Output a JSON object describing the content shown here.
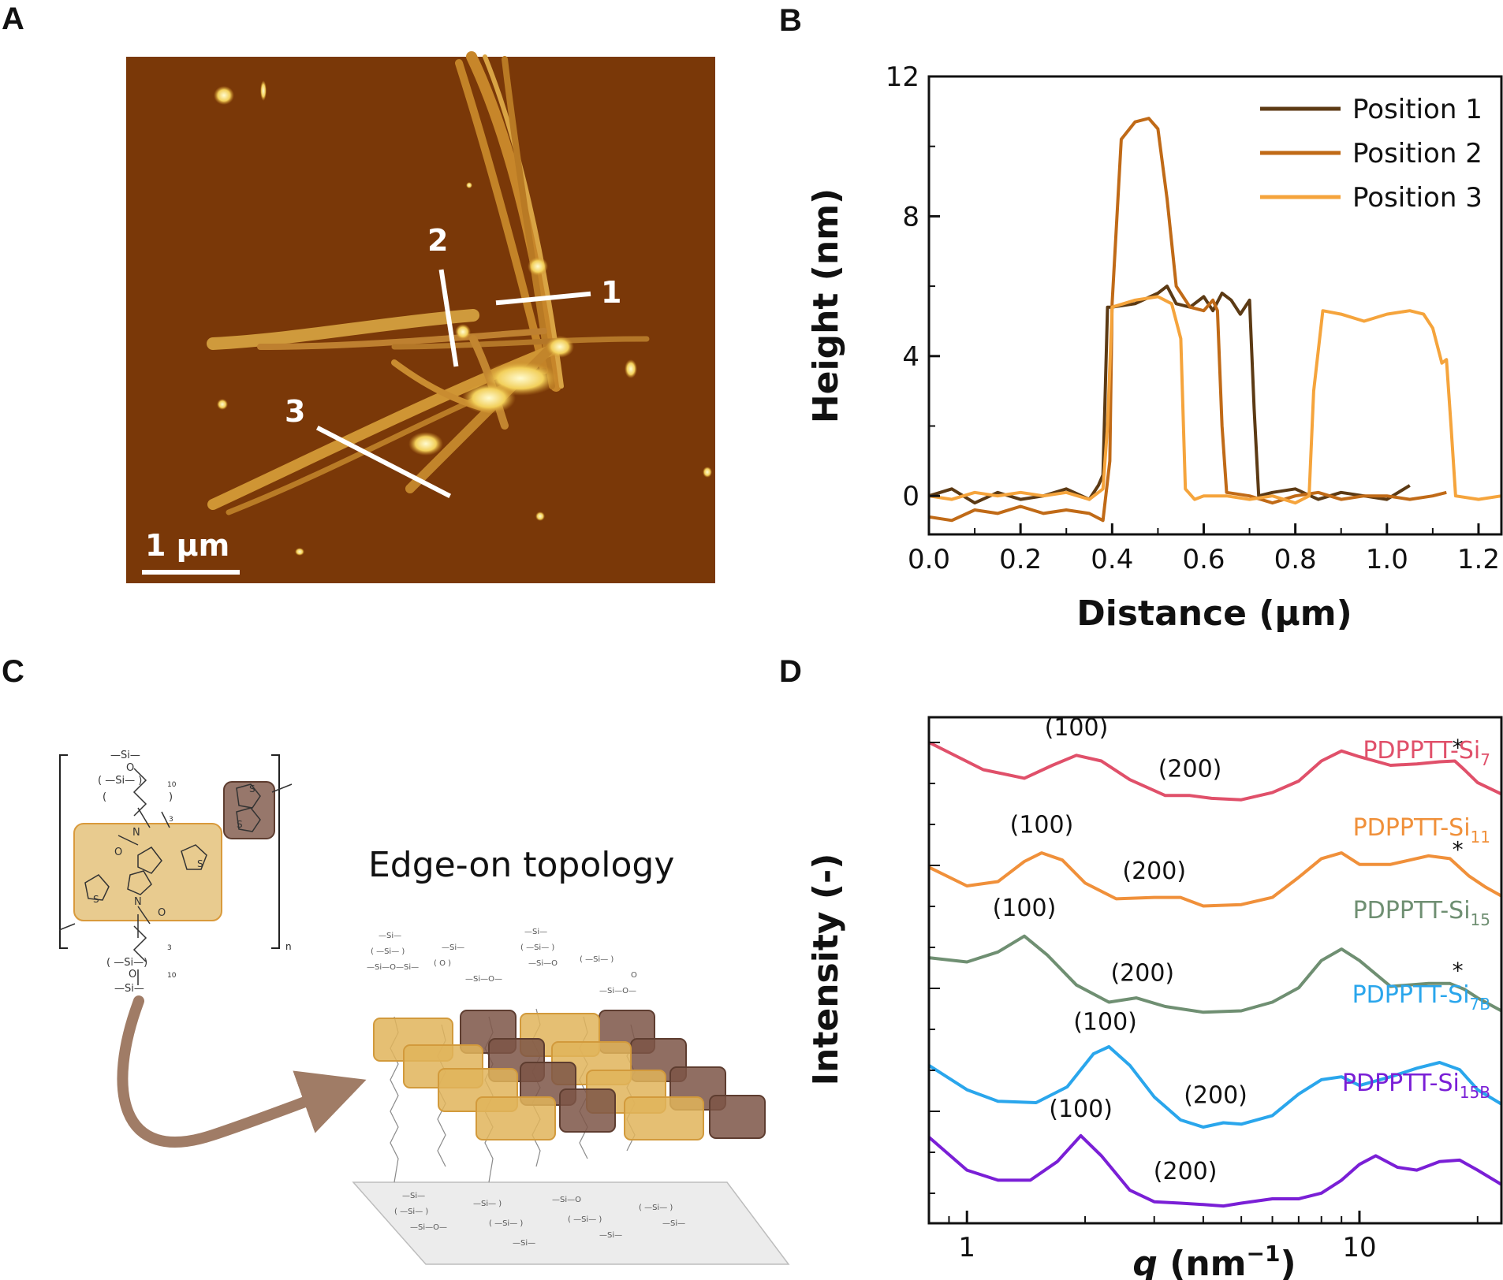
{
  "panels": {
    "A": "A",
    "B": "B",
    "C": "C",
    "D": "D"
  },
  "afm": {
    "scale_bar": "1 μm",
    "line_labels": [
      "1",
      "2",
      "3"
    ],
    "background_color": "#7a3808",
    "fiber_color": "#d39a37",
    "highlight_color": "#fff2a6"
  },
  "panel_c": {
    "title": "Edge-on topology",
    "repeat_unit_subscript": "n",
    "arrow_color": "#a07c66",
    "core_color": "#e0b96a",
    "donor_color": "#7d5546"
  },
  "chart_data": [
    {
      "panel": "B",
      "type": "line",
      "xlabel": "Distance (μm)",
      "ylabel": "Height (nm)",
      "xlim": [
        0.0,
        1.25
      ],
      "ylim": [
        -1.1,
        12
      ],
      "xticks": [
        "0.0",
        "0.2",
        "0.4",
        "0.6",
        "0.8",
        "1.0",
        "1.2"
      ],
      "yticks": [
        "0",
        "4",
        "8",
        "12"
      ],
      "legend_position": "top-right",
      "series": [
        {
          "name": "Position 1",
          "color": "#5c3a14",
          "x": [
            0.0,
            0.05,
            0.1,
            0.15,
            0.2,
            0.25,
            0.3,
            0.35,
            0.37,
            0.38,
            0.39,
            0.4,
            0.45,
            0.5,
            0.52,
            0.54,
            0.57,
            0.6,
            0.62,
            0.64,
            0.66,
            0.68,
            0.7,
            0.71,
            0.72,
            0.75,
            0.8,
            0.85,
            0.9,
            0.95,
            1.0,
            1.05
          ],
          "y": [
            0.0,
            0.2,
            -0.2,
            0.1,
            -0.1,
            0.0,
            0.2,
            -0.1,
            0.3,
            0.6,
            5.4,
            5.4,
            5.5,
            5.8,
            6.0,
            5.5,
            5.4,
            5.7,
            5.3,
            5.8,
            5.6,
            5.2,
            5.6,
            2.5,
            0.0,
            0.1,
            0.2,
            -0.1,
            0.1,
            0.0,
            -0.1,
            0.3
          ]
        },
        {
          "name": "Position 2",
          "color": "#c06a17",
          "x": [
            0.0,
            0.05,
            0.1,
            0.15,
            0.2,
            0.25,
            0.3,
            0.35,
            0.38,
            0.395,
            0.4,
            0.42,
            0.45,
            0.48,
            0.5,
            0.52,
            0.54,
            0.57,
            0.6,
            0.62,
            0.63,
            0.64,
            0.65,
            0.7,
            0.75,
            0.8,
            0.85,
            0.9,
            0.95,
            1.0,
            1.05,
            1.1,
            1.13
          ],
          "y": [
            -0.6,
            -0.7,
            -0.4,
            -0.5,
            -0.3,
            -0.5,
            -0.4,
            -0.5,
            -0.7,
            1.0,
            5.5,
            10.2,
            10.7,
            10.8,
            10.5,
            8.5,
            6.0,
            5.4,
            5.3,
            5.6,
            5.3,
            2.0,
            0.1,
            0.0,
            -0.2,
            0.0,
            0.1,
            -0.1,
            0.0,
            0.0,
            -0.1,
            0.0,
            0.1
          ]
        },
        {
          "name": "Position 3",
          "color": "#f5a43c",
          "x": [
            0.0,
            0.05,
            0.1,
            0.15,
            0.2,
            0.25,
            0.3,
            0.35,
            0.38,
            0.39,
            0.4,
            0.45,
            0.5,
            0.53,
            0.55,
            0.56,
            0.58,
            0.6,
            0.65,
            0.7,
            0.75,
            0.8,
            0.83,
            0.84,
            0.86,
            0.9,
            0.95,
            1.0,
            1.05,
            1.08,
            1.1,
            1.12,
            1.13,
            1.14,
            1.15,
            1.2,
            1.25
          ],
          "y": [
            0.0,
            -0.1,
            0.1,
            0.0,
            0.1,
            0.0,
            0.1,
            -0.1,
            0.2,
            2.0,
            5.4,
            5.6,
            5.7,
            5.5,
            4.5,
            0.2,
            -0.1,
            0.0,
            0.0,
            -0.1,
            0.0,
            -0.2,
            0.0,
            3.0,
            5.3,
            5.2,
            5.0,
            5.2,
            5.3,
            5.2,
            4.8,
            3.8,
            3.9,
            2.0,
            0.0,
            -0.1,
            0.0
          ]
        }
      ]
    },
    {
      "panel": "D",
      "type": "line",
      "xscale": "log",
      "xlabel": "q (nm⁻¹)",
      "x_symbol": "q",
      "x_unit": " (nm",
      "x_unit_sup": "−1",
      "x_unit_close": ")",
      "ylabel": "Intensity (-)",
      "xlim": [
        0.8,
        23
      ],
      "xticks": [
        "1",
        "10"
      ],
      "grid": false,
      "series": [
        {
          "name_main": "PDPPTT-Si",
          "name_sub": "7",
          "color": "#e0506a",
          "x": [
            0.8,
            1.1,
            1.4,
            1.65,
            1.9,
            2.2,
            2.6,
            3.2,
            3.7,
            4.2,
            5.0,
            6.0,
            7.0,
            8.0,
            9.0,
            10.0,
            12.0,
            14.0,
            16.0,
            17.5,
            18.5,
            20.0,
            23.0
          ],
          "y": [
            0.0,
            -0.38,
            -0.5,
            -0.32,
            -0.18,
            -0.26,
            -0.52,
            -0.74,
            -0.74,
            -0.78,
            -0.8,
            -0.7,
            -0.54,
            -0.26,
            -0.12,
            -0.2,
            -0.32,
            -0.3,
            -0.27,
            -0.26,
            -0.38,
            -0.56,
            -0.72
          ],
          "peak_labels": [
            {
              "label": "(100)",
              "q": 1.9,
              "dy": 0.28
            },
            {
              "label": "(200)",
              "q": 3.7,
              "dy": 0.26
            }
          ],
          "star_q": 17.8
        },
        {
          "name_main": "PDPPTT-Si",
          "name_sub": "11",
          "color": "#f0903a",
          "x": [
            0.8,
            1.0,
            1.2,
            1.4,
            1.55,
            1.75,
            2.0,
            2.4,
            3.0,
            3.5,
            4.0,
            5.0,
            6.0,
            7.0,
            8.0,
            9.0,
            10.0,
            12.0,
            15.0,
            17.0,
            19.0,
            21.0,
            23.0
          ],
          "y": [
            -1.74,
            -2.0,
            -1.94,
            -1.66,
            -1.54,
            -1.64,
            -1.96,
            -2.18,
            -2.16,
            -2.16,
            -2.28,
            -2.26,
            -2.16,
            -1.88,
            -1.62,
            -1.54,
            -1.7,
            -1.7,
            -1.58,
            -1.62,
            -1.86,
            -2.02,
            -2.14
          ],
          "peak_labels": [
            {
              "label": "(100)",
              "q": 1.55,
              "dy": 0.28
            },
            {
              "label": "(200)",
              "q": 3.0,
              "dy": 0.26
            }
          ],
          "star_q": 17.8
        },
        {
          "name_main": "PDPPTT-Si",
          "name_sub": "15",
          "color": "#6f8f72",
          "x": [
            0.8,
            1.0,
            1.2,
            1.4,
            1.6,
            1.9,
            2.3,
            2.7,
            3.2,
            4.0,
            5.0,
            6.0,
            7.0,
            8.0,
            9.0,
            10.0,
            12.0,
            15.0,
            17.0,
            18.5,
            20.0,
            23.0
          ],
          "y": [
            -3.0,
            -3.06,
            -2.92,
            -2.7,
            -2.96,
            -3.38,
            -3.62,
            -3.56,
            -3.68,
            -3.76,
            -3.74,
            -3.62,
            -3.42,
            -3.04,
            -2.88,
            -3.04,
            -3.4,
            -3.36,
            -3.36,
            -3.44,
            -3.56,
            -3.74
          ],
          "peak_labels": [
            {
              "label": "(100)",
              "q": 1.4,
              "dy": 0.28
            },
            {
              "label": "(200)",
              "q": 2.8,
              "dy": 0.26
            }
          ],
          "star_q": 17.8
        },
        {
          "name_main": "PDPPTT-Si",
          "name_sub": "7B",
          "color": "#2aa6ec",
          "x": [
            0.8,
            1.0,
            1.2,
            1.5,
            1.8,
            2.1,
            2.3,
            2.6,
            3.0,
            3.5,
            4.0,
            4.5,
            5.0,
            6.0,
            7.0,
            8.0,
            9.0,
            10.0,
            12.0,
            14.0,
            16.0,
            18.0,
            20.0,
            23.0
          ],
          "y": [
            -4.5,
            -4.84,
            -5.0,
            -5.02,
            -4.8,
            -4.34,
            -4.24,
            -4.5,
            -4.94,
            -5.26,
            -5.36,
            -5.3,
            -5.32,
            -5.2,
            -4.9,
            -4.7,
            -4.66,
            -4.78,
            -4.66,
            -4.54,
            -4.46,
            -4.56,
            -4.84,
            -5.04
          ],
          "peak_labels": [
            {
              "label": "(100)",
              "q": 2.25,
              "dy": 0.26
            },
            {
              "label": "(200)",
              "q": 4.3,
              "dy": 0.3
            }
          ]
        },
        {
          "name_main": "PDPPTT-Si",
          "name_sub": "15B",
          "color": "#7a1fd6",
          "x": [
            0.8,
            1.0,
            1.2,
            1.45,
            1.7,
            1.95,
            2.2,
            2.6,
            3.0,
            3.5,
            4.0,
            4.5,
            5.0,
            6.0,
            7.0,
            8.0,
            9.0,
            10.0,
            11.0,
            12.5,
            14.0,
            16.0,
            18.0,
            20.0,
            23.0
          ],
          "y": [
            -5.5,
            -5.96,
            -6.1,
            -6.1,
            -5.84,
            -5.48,
            -5.76,
            -6.24,
            -6.4,
            -6.42,
            -6.44,
            -6.46,
            -6.42,
            -6.36,
            -6.36,
            -6.28,
            -6.1,
            -5.88,
            -5.76,
            -5.92,
            -5.96,
            -5.84,
            -5.82,
            -5.96,
            -6.16
          ],
          "peak_labels": [
            {
              "label": "(100)",
              "q": 1.95,
              "dy": 0.26
            },
            {
              "label": "(200)",
              "q": 3.6,
              "dy": 0.34
            }
          ]
        }
      ]
    }
  ]
}
